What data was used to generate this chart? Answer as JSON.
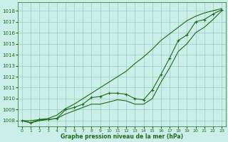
{
  "title": "Graphe pression niveau de la mer (hPa)",
  "xlabel_hours": [
    0,
    1,
    2,
    3,
    4,
    5,
    6,
    7,
    8,
    9,
    10,
    11,
    12,
    13,
    14,
    15,
    16,
    17,
    18,
    19,
    20,
    21,
    22,
    23
  ],
  "line_upper": [
    1008.0,
    1008.0,
    1008.1,
    1008.2,
    1008.5,
    1009.1,
    1009.5,
    1010.0,
    1010.5,
    1011.0,
    1011.5,
    1012.0,
    1012.5,
    1013.2,
    1013.8,
    1014.5,
    1015.3,
    1015.9,
    1016.5,
    1017.1,
    1017.5,
    1017.8,
    1018.0,
    1018.2
  ],
  "line_lower": [
    1008.0,
    1007.8,
    1008.0,
    1008.1,
    1008.2,
    1008.6,
    1008.9,
    1009.2,
    1009.5,
    1009.5,
    1009.7,
    1009.9,
    1009.8,
    1009.5,
    1009.5,
    1010.0,
    1011.5,
    1012.8,
    1014.3,
    1015.0,
    1016.0,
    1016.5,
    1017.2,
    1018.0
  ],
  "line_dots": [
    1008.0,
    1007.8,
    1008.1,
    1008.1,
    1008.2,
    1009.0,
    1009.2,
    1009.5,
    1010.1,
    1010.2,
    1010.5,
    1010.5,
    1010.4,
    1010.0,
    1009.9,
    1010.8,
    1012.2,
    1013.7,
    1015.3,
    1015.8,
    1017.0,
    1017.2,
    1017.7,
    1018.1
  ],
  "ylim_min": 1007.5,
  "ylim_max": 1018.8,
  "yticks": [
    1008,
    1009,
    1010,
    1011,
    1012,
    1013,
    1014,
    1015,
    1016,
    1017,
    1018
  ],
  "bg_color": "#cceee8",
  "grid_color": "#99ccbb",
  "line_color": "#1a6b1a",
  "dot_color": "#1a6b1a",
  "title_color": "#1a6b1a",
  "axis_label_color": "#1a6b1a",
  "tick_color": "#1a6b1a"
}
